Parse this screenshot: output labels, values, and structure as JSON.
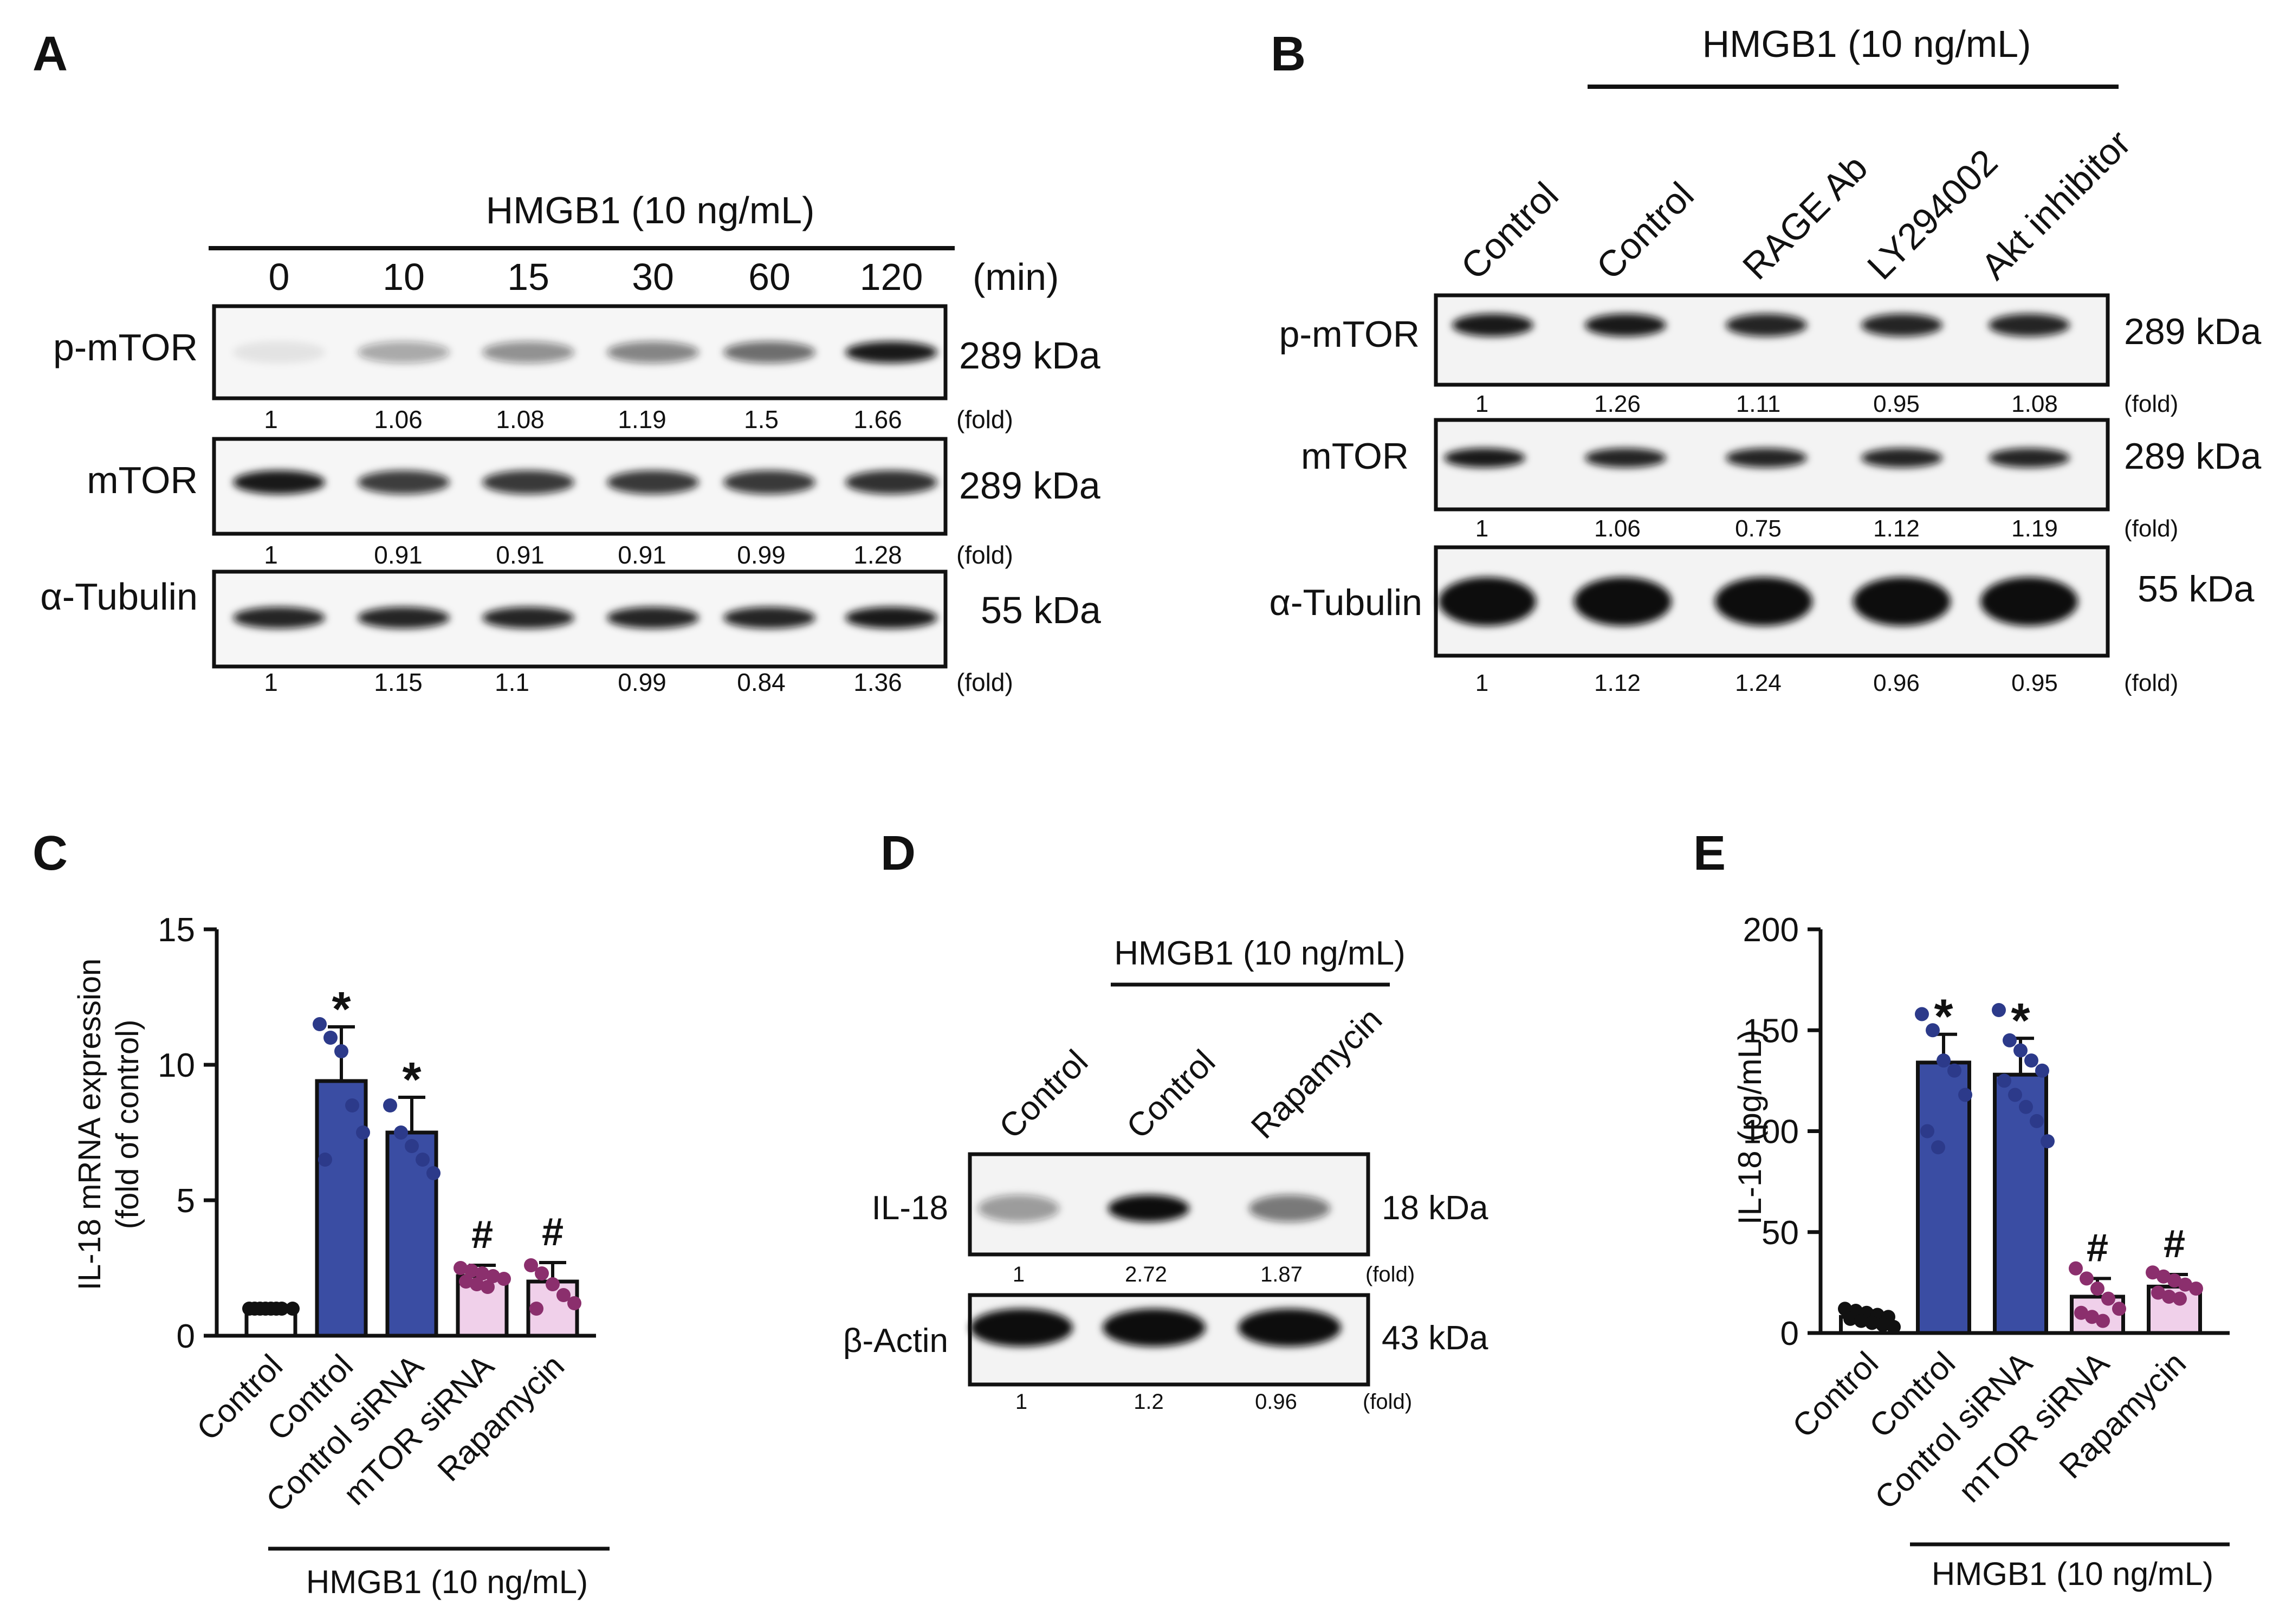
{
  "panel_labels": {
    "a": "A",
    "b": "B",
    "c": "C",
    "d": "D",
    "e": "E"
  },
  "colors": {
    "blue": "#3a4da3",
    "blue_dot": "#2c3a8a",
    "pink": "#f0d0ea",
    "pink_dot": "#8b2f6d",
    "ink": "#111111"
  },
  "panel_a": {
    "treatment": "HMGB1 (10 ng/mL)",
    "time_unit": "(min)",
    "times": [
      "0",
      "10",
      "15",
      "30",
      "60",
      "120"
    ],
    "intensities": {
      "p_mtor": [
        0.08,
        0.35,
        0.45,
        0.5,
        0.6,
        0.95
      ],
      "mtor": [
        0.95,
        0.8,
        0.82,
        0.82,
        0.82,
        0.85
      ],
      "tubulin": [
        0.9,
        0.9,
        0.9,
        0.9,
        0.9,
        0.95
      ]
    },
    "rows": [
      {
        "label": "p-mTOR",
        "size": "289 kDa",
        "folds": [
          "1",
          "1.06",
          "1.08",
          "1.19",
          "1.5",
          "1.66"
        ],
        "fold_unit": "(fold)"
      },
      {
        "label": "mTOR",
        "size": "289 kDa",
        "folds": [
          "1",
          "0.91",
          "0.91",
          "0.91",
          "0.99",
          "1.28"
        ],
        "fold_unit": "(fold)"
      },
      {
        "label": "α-Tubulin",
        "size": "55 kDa",
        "folds": [
          "1",
          "1.15",
          "1.1",
          "0.99",
          "0.84",
          "1.36"
        ],
        "fold_unit": "(fold)"
      }
    ]
  },
  "panel_b": {
    "treatment": "HMGB1 (10 ng/mL)",
    "lanes": [
      "Control",
      "Control",
      "RAGE Ab",
      "LY294002",
      "Akt inhibitor"
    ],
    "intensities": {
      "p_mtor": [
        0.95,
        0.95,
        0.9,
        0.9,
        0.9
      ],
      "mtor": [
        0.95,
        0.9,
        0.9,
        0.9,
        0.9
      ],
      "tubulin": [
        1,
        1,
        1,
        1,
        1
      ]
    },
    "rows": [
      {
        "label": "p-mTOR",
        "size": "289 kDa",
        "folds": [
          "1",
          "1.26",
          "1.11",
          "0.95",
          "1.08"
        ],
        "fold_unit": "(fold)"
      },
      {
        "label": "mTOR",
        "size": "289 kDa",
        "folds": [
          "1",
          "1.06",
          "0.75",
          "1.12",
          "1.19"
        ],
        "fold_unit": "(fold)"
      },
      {
        "label": "α-Tubulin",
        "size": "55 kDa",
        "folds": [
          "1",
          "1.12",
          "1.24",
          "0.96",
          "0.95"
        ],
        "fold_unit": "(fold)"
      }
    ]
  },
  "panel_d": {
    "treatment": "HMGB1 (10 ng/mL)",
    "lanes": [
      "Control",
      "Control",
      "Rapamycin"
    ],
    "intensities": {
      "il18": [
        0.4,
        1,
        0.55
      ],
      "actin": [
        1,
        1,
        1
      ]
    },
    "rows": [
      {
        "label": "IL-18",
        "size": "18 kDa",
        "folds": [
          "1",
          "2.72",
          "1.87"
        ],
        "fold_unit": "(fold)"
      },
      {
        "label": "β-Actin",
        "size": "43 kDa",
        "folds": [
          "1",
          "1.2",
          "0.96"
        ],
        "fold_unit": "(fold)"
      }
    ]
  },
  "chart_data": [
    {
      "type": "bar",
      "title": "",
      "ylabel": "IL-18 mRNA expression (fold of control)",
      "ylabel_lines": [
        "IL-18 mRNA expression",
        "(fold of control)"
      ],
      "ylim": [
        0,
        15
      ],
      "yticks": [
        "0",
        "5",
        "10",
        "15"
      ],
      "categories": [
        "Control",
        "Control",
        "Control siRNA",
        "mTOR siRNA",
        "Rapamycin"
      ],
      "values": [
        1.0,
        9.4,
        7.5,
        2.2,
        2.0
      ],
      "errors": [
        0.1,
        2.0,
        1.3,
        0.4,
        0.7
      ],
      "bar_colors": [
        "white",
        "blue",
        "blue",
        "pink",
        "pink"
      ],
      "marks": [
        "",
        "*",
        "*",
        "#",
        "#"
      ],
      "points": [
        [
          1,
          1,
          1,
          1,
          1,
          1,
          1,
          1
        ],
        [
          11.5,
          11,
          10.5,
          8.5,
          7.5,
          6.5
        ],
        [
          8.5,
          7.5,
          7,
          6.5,
          6
        ],
        [
          2.5,
          2.4,
          2.3,
          2.2,
          2.1,
          2.0,
          1.9,
          1.8
        ],
        [
          2.6,
          2.3,
          1.9,
          1.5,
          1.2,
          1.0
        ]
      ],
      "group_label": "HMGB1 (10 ng/mL)"
    },
    {
      "type": "bar",
      "title": "",
      "ylabel": "IL-18 (pg/mL)",
      "ylim": [
        0,
        200
      ],
      "yticks": [
        "0",
        "50",
        "100",
        "150",
        "200"
      ],
      "categories": [
        "Control",
        "Control",
        "Control siRNA",
        "mTOR siRNA",
        "Rapamycin"
      ],
      "values": [
        8,
        134,
        128,
        18,
        23
      ],
      "errors": [
        3,
        14,
        18,
        9,
        6
      ],
      "bar_colors": [
        "white",
        "blue",
        "blue",
        "pink",
        "pink"
      ],
      "marks": [
        "",
        "*",
        "*",
        "#",
        "#"
      ],
      "points": [
        [
          12,
          11,
          10,
          9,
          8,
          7,
          6,
          5,
          4,
          3
        ],
        [
          158,
          150,
          135,
          130,
          118,
          100,
          92
        ],
        [
          160,
          145,
          140,
          135,
          130,
          125,
          118,
          112,
          105,
          95
        ],
        [
          32,
          27,
          22,
          17,
          12,
          10,
          8,
          6
        ],
        [
          30,
          28,
          26,
          24,
          22,
          20,
          18,
          17
        ]
      ],
      "group_label": "HMGB1 (10 ng/mL)"
    }
  ]
}
